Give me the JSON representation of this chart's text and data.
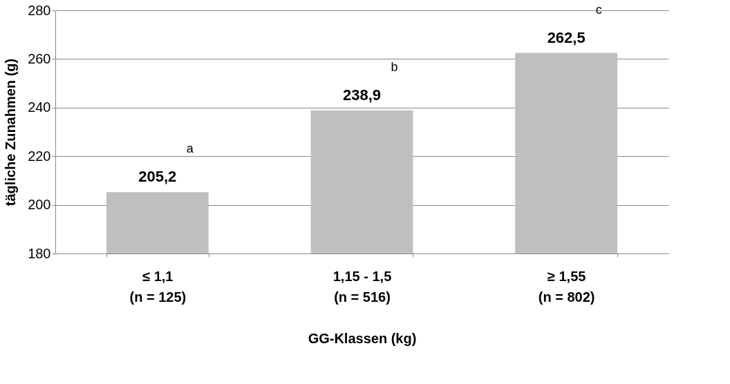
{
  "chart_data": {
    "type": "bar",
    "xlabel": "GG-Klassen (kg)",
    "ylabel": "tägliche Zunahmen (g)",
    "categories": [
      "≤ 1,1\n(n = 125)",
      "1,15 - 1,5\n(n = 516)",
      "≥ 1,55\n(n = 802)"
    ],
    "values": [
      205.2,
      238.9,
      262.5
    ],
    "color": "#bfbfbf",
    "value_labels": [
      "205,2",
      "238,9",
      "262,5"
    ],
    "ylim": [
      180,
      280
    ],
    "yticks": [
      180,
      200,
      220,
      240,
      260,
      280
    ],
    "grid": "y",
    "annotations": [
      "a",
      "b",
      "c"
    ]
  }
}
